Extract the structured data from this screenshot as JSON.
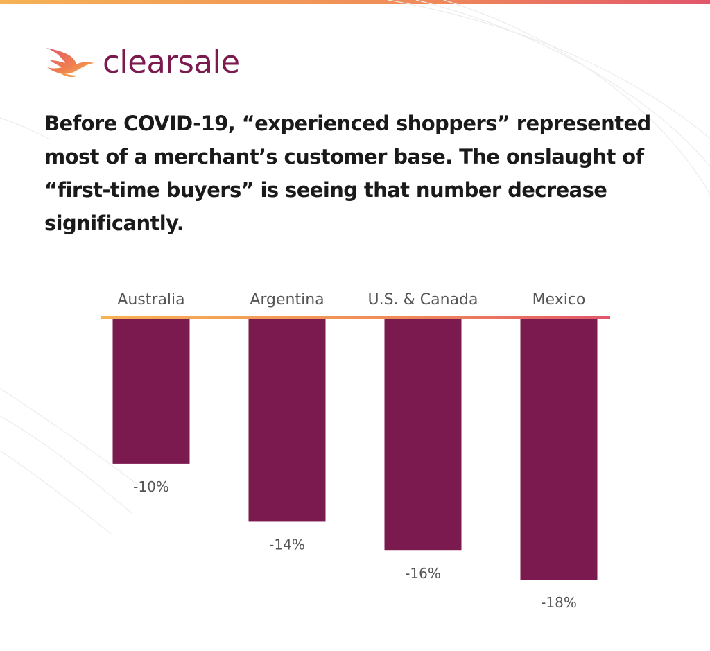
{
  "brand": {
    "name": "clearsale",
    "logo_icon": "bird-icon",
    "colors": {
      "primary": "#7b1a4e",
      "accent_orange": "#f39a4c",
      "accent_red": "#e2566b",
      "accent_yellow": "#f6b254"
    }
  },
  "headline": "Before COVID-19, “experienced shoppers” represented most of a merchant’s customer base. The onslaught of “first-time buyers” is seeing that number decrease significantly.",
  "chart_data": {
    "type": "bar",
    "orientation": "vertical-downward",
    "categories": [
      "Australia",
      "Argentina",
      "U.S. & Canada",
      "Mexico"
    ],
    "values": [
      -10,
      -14,
      -16,
      -18
    ],
    "value_labels": [
      "-10%",
      "-14%",
      "-16%",
      "-18%"
    ],
    "unit": "%",
    "ylim": [
      -18,
      0
    ],
    "grid": false,
    "legend": "none",
    "bar_color": "#7b1a4e"
  }
}
